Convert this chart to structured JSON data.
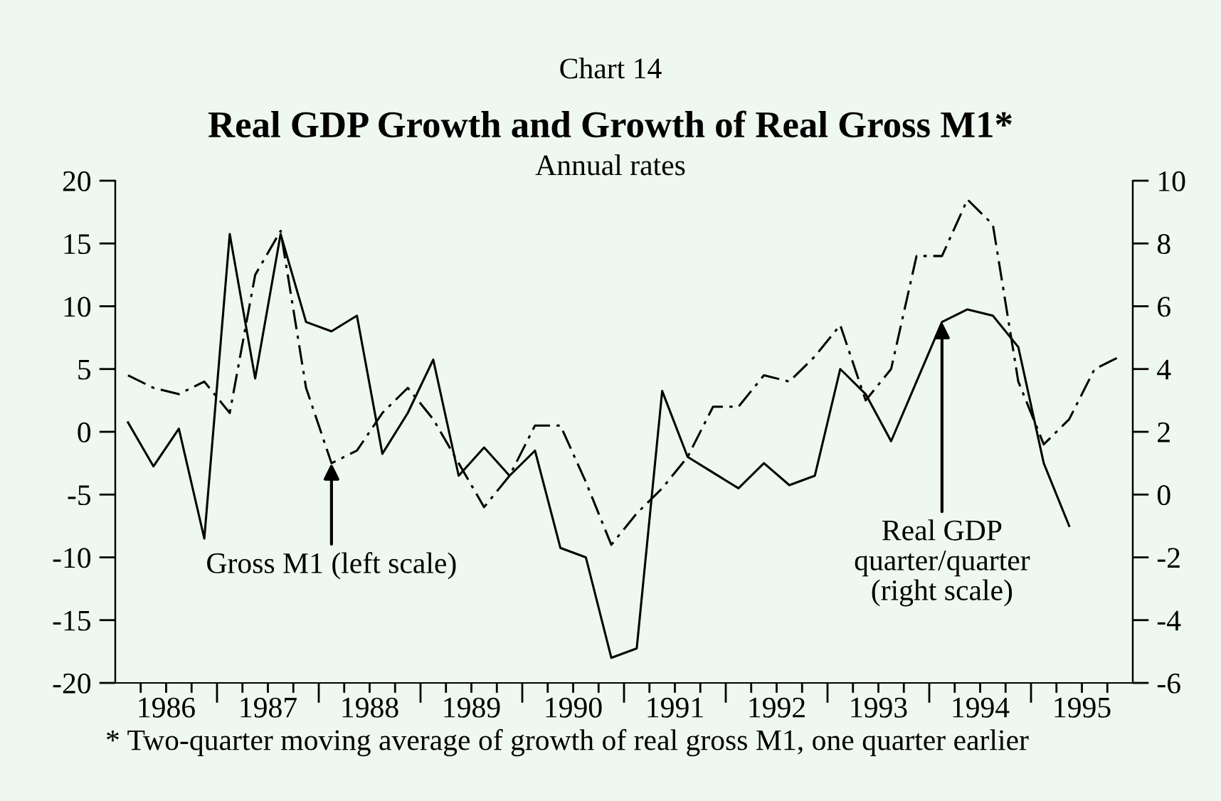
{
  "chart_data": {
    "type": "line",
    "title": "Chart 14",
    "subtitle": "Real GDP Growth and Growth of Real Gross M1*",
    "ylabel": "Annual rates",
    "x": [
      1986.125,
      1986.375,
      1986.625,
      1986.875,
      1987.125,
      1987.375,
      1987.625,
      1987.875,
      1988.125,
      1988.375,
      1988.625,
      1988.875,
      1989.125,
      1989.375,
      1989.625,
      1989.875,
      1990.125,
      1990.375,
      1990.625,
      1990.875,
      1991.125,
      1991.375,
      1991.625,
      1991.875,
      1992.125,
      1992.375,
      1992.625,
      1992.875,
      1993.125,
      1993.375,
      1993.625,
      1993.875,
      1994.125,
      1994.375,
      1994.625,
      1994.875,
      1995.125,
      1995.375,
      1995.625,
      1995.875
    ],
    "series": [
      {
        "color": "#000000",
        "line_style": "dashed",
        "values": [
          4.5,
          3.5,
          3,
          4,
          1.5,
          12.5,
          16,
          3.5,
          -2.5,
          -1.5,
          1.5,
          3.5,
          1,
          -2.5,
          -6,
          -3.5,
          0.5,
          0.5,
          -4,
          -9,
          -6.5,
          -4.5,
          -2,
          2,
          2,
          4.5,
          4,
          6,
          8.5,
          2.5,
          5,
          14,
          14,
          18.5,
          16.5,
          4,
          -1,
          1,
          5,
          6
        ]
      },
      {
        "color": "#000000",
        "line_style": "solid",
        "axis": "y2",
        "values": [
          2.3,
          0.9,
          2.1,
          -1.4,
          8.3,
          3.7,
          8.3,
          5.5,
          5.2,
          5.7,
          1.3,
          2.6,
          4.3,
          0.6,
          1.5,
          0.6,
          1.4,
          -1.7,
          -2.0,
          -5.2,
          -4.9,
          3.3,
          1.2,
          0.7,
          0.2,
          1.0,
          0.3,
          0.6,
          4.0,
          3.2,
          1.7,
          3.6,
          5.5,
          5.9,
          5.7,
          4.7,
          1.0,
          -1.0,
          null,
          null
        ]
      }
    ],
    "xlim": [
      1986,
      1996
    ],
    "xticks": [
      {
        "value": 1986.25,
        "label": null
      },
      {
        "value": 1986.5,
        "label": "1986"
      },
      {
        "value": 1986.75,
        "label": null
      },
      {
        "value": 1987,
        "label": null
      },
      {
        "value": 1987.25,
        "label": null
      },
      {
        "value": 1987.5,
        "label": "1987"
      },
      {
        "value": 1987.75,
        "label": null
      },
      {
        "value": 1988,
        "label": null
      },
      {
        "value": 1988.25,
        "label": null
      },
      {
        "value": 1988.5,
        "label": "1988"
      },
      {
        "value": 1988.75,
        "label": null
      },
      {
        "value": 1989,
        "label": null
      },
      {
        "value": 1989.25,
        "label": null
      },
      {
        "value": 1989.5,
        "label": "1989"
      },
      {
        "value": 1989.75,
        "label": null
      },
      {
        "value": 1990,
        "label": null
      },
      {
        "value": 1990.25,
        "label": null
      },
      {
        "value": 1990.5,
        "label": "1990"
      },
      {
        "value": 1990.75,
        "label": null
      },
      {
        "value": 1991,
        "label": null
      },
      {
        "value": 1991.25,
        "label": null
      },
      {
        "value": 1991.5,
        "label": "1991"
      },
      {
        "value": 1991.75,
        "label": null
      },
      {
        "value": 1992,
        "label": null
      },
      {
        "value": 1992.25,
        "label": null
      },
      {
        "value": 1992.5,
        "label": "1992"
      },
      {
        "value": 1992.75,
        "label": null
      },
      {
        "value": 1993,
        "label": null
      },
      {
        "value": 1993.25,
        "label": null
      },
      {
        "value": 1993.5,
        "label": "1993"
      },
      {
        "value": 1993.75,
        "label": null
      },
      {
        "value": 1994,
        "label": null
      },
      {
        "value": 1994.25,
        "label": null
      },
      {
        "value": 1994.5,
        "label": "1994"
      },
      {
        "value": 1994.75,
        "label": null
      },
      {
        "value": 1995,
        "label": null
      },
      {
        "value": 1995.25,
        "label": null
      },
      {
        "value": 1995.5,
        "label": "1995"
      },
      {
        "value": 1995.75,
        "label": null
      }
    ],
    "ylim": [
      -20,
      20
    ],
    "yticks": [
      -20,
      -15,
      -10,
      -5,
      0,
      5,
      10,
      15,
      20
    ],
    "y2lim": [
      -6,
      10
    ],
    "y2ticks": [
      -6,
      -4,
      -2,
      0,
      2,
      4,
      6,
      8,
      10
    ],
    "annotations": [
      {
        "text": "Gross M1 (left scale)",
        "x": 1988.125,
        "y": -2.5
      },
      {
        "text": "Real GDP\nquarter/quarter\n(right scale)",
        "x": 1994.125,
        "y": 8.75
      },
      "* Two-quarter moving average of growth of real gross M1, one quarter earlier"
    ],
    "grid": false,
    "legend": false
  }
}
